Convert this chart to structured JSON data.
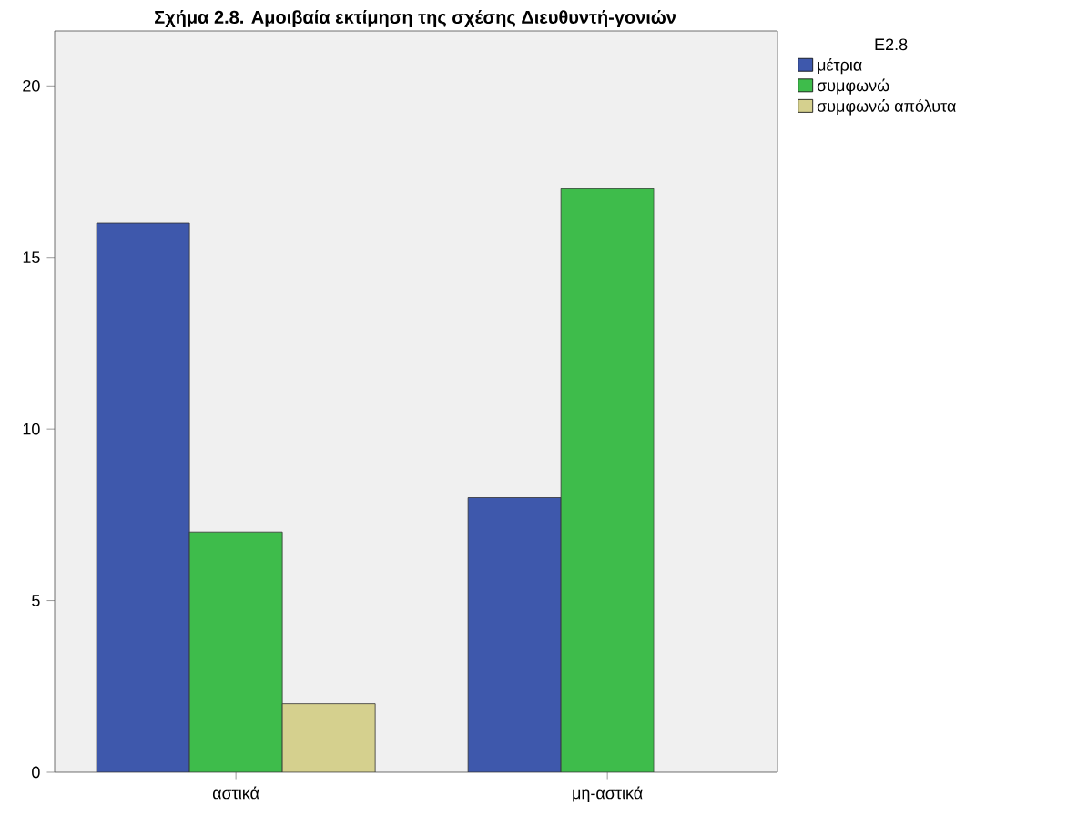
{
  "chart_data": {
    "type": "bar",
    "title": "Σχήμα 2.8. Αμοιβαία εκτίμηση της σχέσης Διευθυντή-γονιών",
    "categories": [
      "αστικά",
      "μη-αστικά"
    ],
    "series": [
      {
        "name": "μέτρια",
        "color": "#3e58ac",
        "values": [
          16,
          8
        ]
      },
      {
        "name": "συμφωνώ",
        "color": "#3ebc4b",
        "values": [
          7,
          17
        ]
      },
      {
        "name": "συμφωνώ απόλυτα",
        "color": "#d5d08e",
        "values": [
          2,
          null
        ]
      }
    ],
    "legend_title": "E2.8",
    "legend": "top right",
    "ylim": [
      0,
      21.6
    ],
    "yticks": [
      0,
      5,
      10,
      15,
      20
    ],
    "grid": false
  }
}
